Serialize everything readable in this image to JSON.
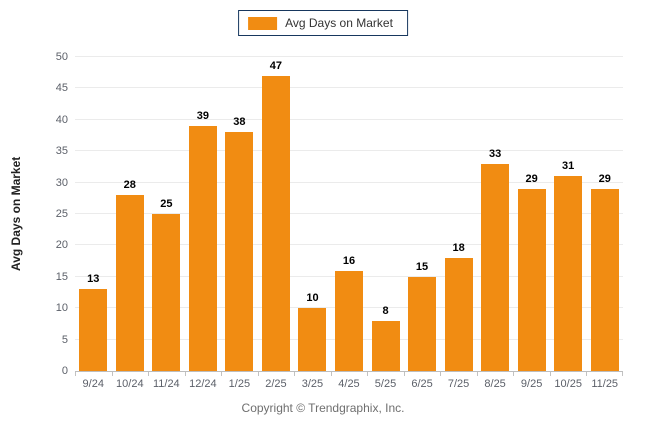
{
  "chart_data": {
    "type": "bar",
    "categories": [
      "9/24",
      "10/24",
      "11/24",
      "12/24",
      "1/25",
      "2/25",
      "3/25",
      "4/25",
      "5/25",
      "6/25",
      "7/25",
      "8/25",
      "9/25",
      "10/25",
      "11/25"
    ],
    "values": [
      13,
      28,
      25,
      39,
      38,
      47,
      10,
      16,
      8,
      15,
      18,
      33,
      29,
      31,
      29
    ],
    "title": "",
    "xlabel": "",
    "ylabel": "Avg Days on Market",
    "ylim": [
      0,
      50
    ],
    "ytick_step": 5,
    "grid": true,
    "legend_position": "top-center",
    "legend_entries": [
      "Avg Days on Market"
    ],
    "bar_color": "#F18C12"
  },
  "legend": {
    "label": "Avg Days on Market",
    "swatch_color": "#F18C12"
  },
  "y_axis": {
    "title": "Avg Days on Market"
  },
  "footer": {
    "copyright": "Copyright © Trendgraphix, Inc."
  },
  "colors": {
    "bar": "#F18C12",
    "legend_border": "#17375E",
    "gridline": "#ebebeb",
    "axis_line": "#bdbdbd",
    "tick_label": "#5c6069",
    "value_label": "#000000",
    "copyright_text": "#6f6f6f"
  }
}
